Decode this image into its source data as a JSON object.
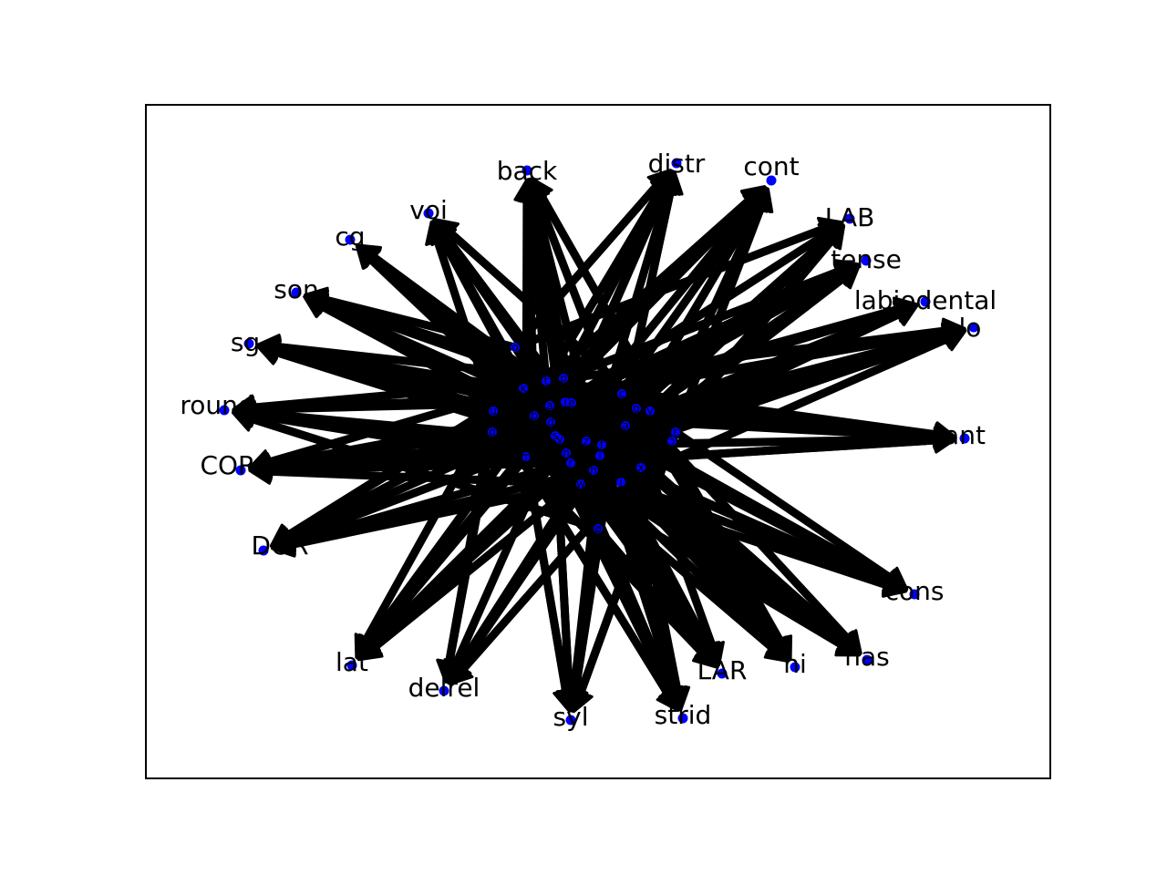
{
  "graph": {
    "edge_color": "#000000",
    "node_color": "#0000ff",
    "frame_color": "#000000",
    "outer_nodes": [
      {
        "label": "back"
      },
      {
        "label": "distr"
      },
      {
        "label": "cont"
      },
      {
        "label": "LAB"
      },
      {
        "label": "tense"
      },
      {
        "label": "labiodental"
      },
      {
        "label": "lo"
      },
      {
        "label": "ant"
      },
      {
        "label": "cons"
      },
      {
        "label": "nas"
      },
      {
        "label": "hi"
      },
      {
        "label": "LAR"
      },
      {
        "label": "strid"
      },
      {
        "label": "syl"
      },
      {
        "label": "delrel"
      },
      {
        "label": "lat"
      },
      {
        "label": "DOR"
      },
      {
        "label": "COR"
      },
      {
        "label": "round"
      },
      {
        "label": "sg"
      },
      {
        "label": "son"
      },
      {
        "label": "cg"
      },
      {
        "label": "voi"
      }
    ],
    "inner_nodes": [
      {
        "label": "o"
      },
      {
        "label": "p"
      },
      {
        "label": "t"
      },
      {
        "label": "k"
      },
      {
        "label": "i"
      },
      {
        "label": "e"
      },
      {
        "label": "a"
      },
      {
        "label": "u"
      },
      {
        "label": "b"
      },
      {
        "label": "d"
      },
      {
        "label": "g"
      },
      {
        "label": "s"
      },
      {
        "label": "z"
      },
      {
        "label": "f"
      },
      {
        "label": "v"
      },
      {
        "label": "m"
      },
      {
        "label": "n"
      },
      {
        "label": "l"
      },
      {
        "label": "r"
      },
      {
        "label": "h"
      },
      {
        "label": "w"
      },
      {
        "label": "j"
      },
      {
        "label": "x"
      },
      {
        "label": "c"
      },
      {
        "label": "q"
      },
      {
        "label": "y"
      },
      {
        "label": "ə"
      },
      {
        "label": "ɛ"
      },
      {
        "label": "ɔ"
      },
      {
        "label": "ø"
      }
    ]
  }
}
